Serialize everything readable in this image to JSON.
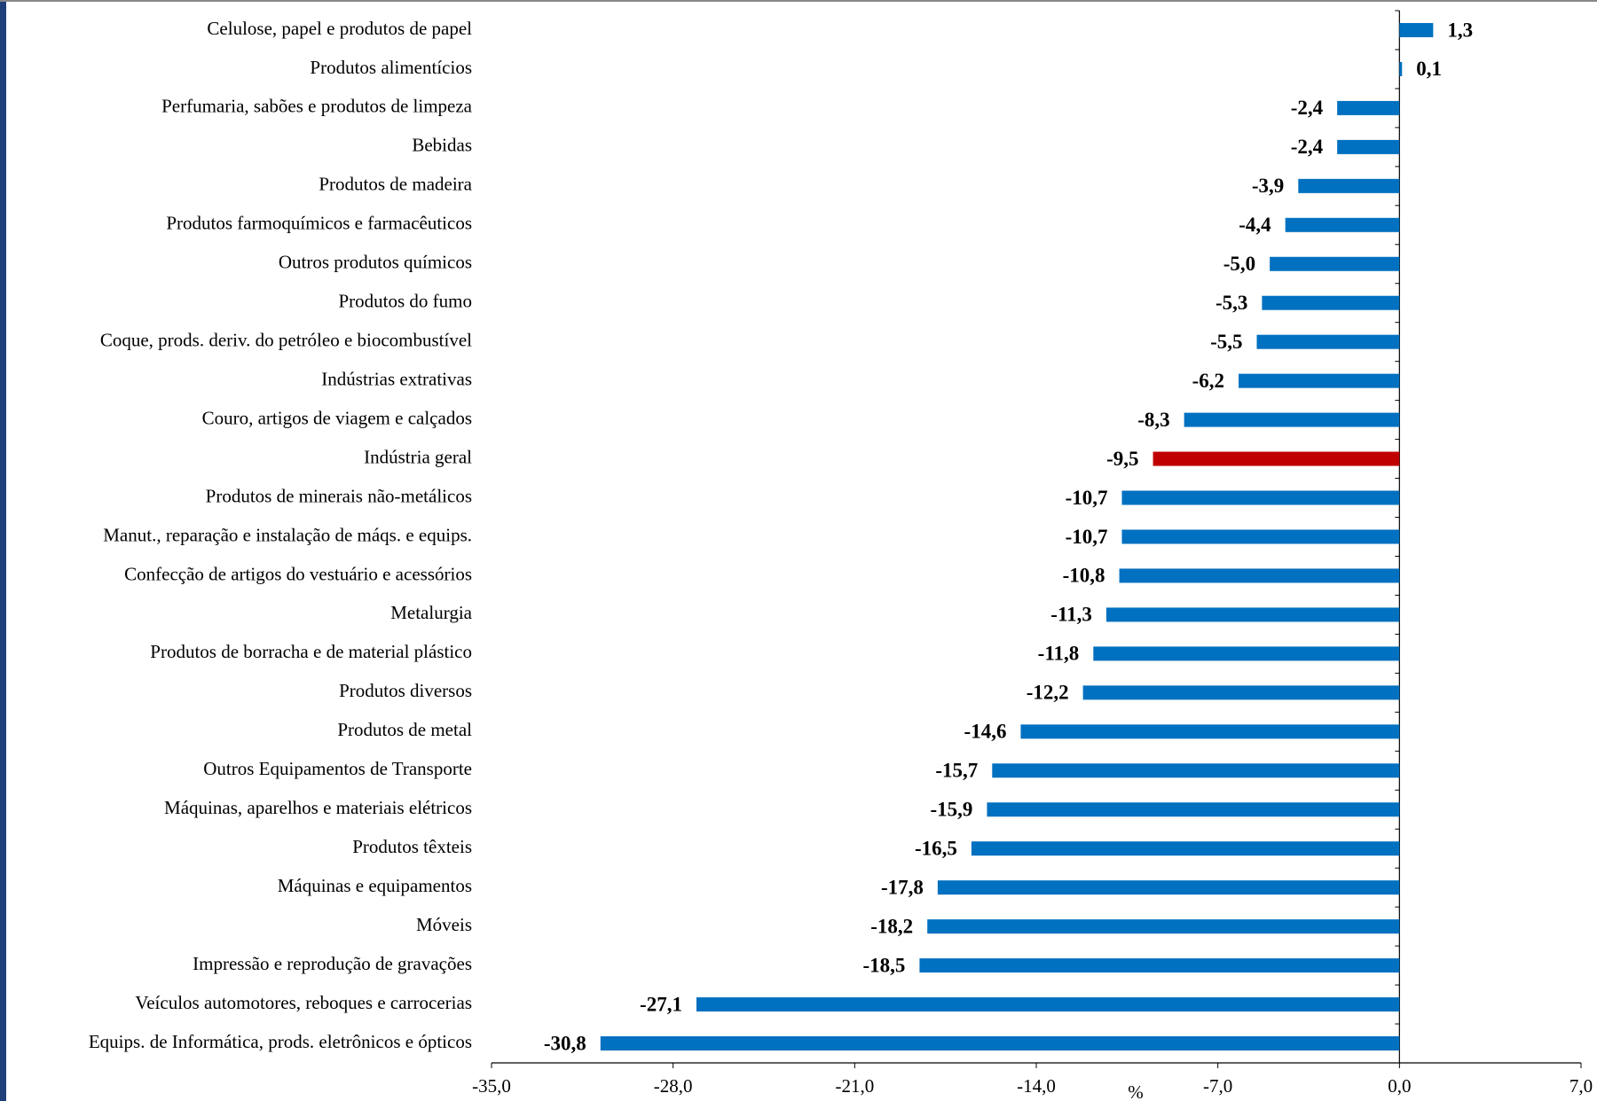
{
  "chart_data": {
    "type": "hbar",
    "x_label": "%",
    "categories": [
      "Celulose, papel e produtos de papel",
      "Produtos alimentícios",
      "Perfumaria, sabões e produtos de limpeza",
      "Bebidas",
      "Produtos de madeira",
      "Produtos farmoquímicos e farmacêuticos",
      "Outros produtos químicos",
      "Produtos do fumo",
      "Coque, prods. deriv. do petróleo e biocombustível",
      "Indústrias extrativas",
      "Couro, artigos de viagem e calçados",
      "Indústria geral",
      "Produtos de minerais não-metálicos",
      "Manut., reparação e instalação de máqs. e equips.",
      "Confecção de artigos do vestuário e acessórios",
      "Metalurgia",
      "Produtos de borracha e de material plástico",
      "Produtos diversos",
      "Produtos de metal",
      "Outros Equipamentos de Transporte",
      "Máquinas, aparelhos e materiais elétricos",
      "Produtos têxteis",
      "Máquinas e equipamentos",
      "Móveis",
      "Impressão e reprodução de gravações",
      "Veículos automotores, reboques e carrocerias",
      "Equips. de Informática, prods. eletrônicos e ópticos"
    ],
    "values": [
      1.3,
      0.1,
      -2.4,
      -2.4,
      -3.9,
      -4.4,
      -5.0,
      -5.3,
      -5.5,
      -6.2,
      -8.3,
      -9.5,
      -10.7,
      -10.7,
      -10.8,
      -11.3,
      -11.8,
      -12.2,
      -14.6,
      -15.7,
      -15.9,
      -16.5,
      -17.8,
      -18.2,
      -18.5,
      -27.1,
      -30.8
    ],
    "value_labels": [
      "1,3",
      "0,1",
      "-2,4",
      "-2,4",
      "-3,9",
      "-4,4",
      "-5,0",
      "-5,3",
      "-5,5",
      "-6,2",
      "-8,3",
      "-9,5",
      "-10,7",
      "-10,7",
      "-10,8",
      "-11,3",
      "-11,8",
      "-12,2",
      "-14,6",
      "-15,7",
      "-15,9",
      "-16,5",
      "-17,8",
      "-18,2",
      "-18,5",
      "-27,1",
      "-30,8"
    ],
    "colors": [
      "#0070c0",
      "#0070c0",
      "#0070c0",
      "#0070c0",
      "#0070c0",
      "#0070c0",
      "#0070c0",
      "#0070c0",
      "#0070c0",
      "#0070c0",
      "#0070c0",
      "#c00000",
      "#0070c0",
      "#0070c0",
      "#0070c0",
      "#0070c0",
      "#0070c0",
      "#0070c0",
      "#0070c0",
      "#0070c0",
      "#0070c0",
      "#0070c0",
      "#0070c0",
      "#0070c0",
      "#0070c0",
      "#0070c0",
      "#0070c0"
    ],
    "xlim": [
      -35,
      7
    ],
    "xticks": [
      {
        "value": -35,
        "label": "-35,0"
      },
      {
        "value": -28,
        "label": "-28,0"
      },
      {
        "value": -21,
        "label": "-21,0"
      },
      {
        "value": -14,
        "label": "-14,0"
      },
      {
        "value": -7,
        "label": "-7,0"
      },
      {
        "value": 0,
        "label": "0,0"
      },
      {
        "value": 7,
        "label": "7,0"
      }
    ]
  }
}
